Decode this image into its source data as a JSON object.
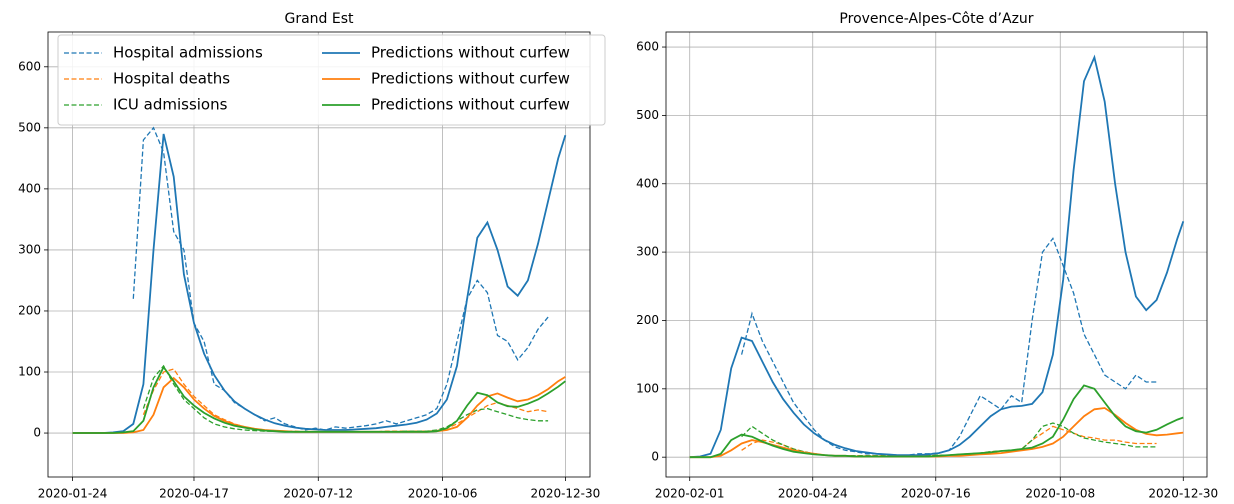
{
  "chart_data": [
    {
      "type": "line",
      "title": "Grand Est",
      "legend": "upper left",
      "legend_columns": 2,
      "grid": true,
      "x": [
        "2020-01-24",
        "2020-01-31",
        "2020-02-07",
        "2020-02-14",
        "2020-02-21",
        "2020-02-28",
        "2020-03-06",
        "2020-03-13",
        "2020-03-20",
        "2020-03-27",
        "2020-04-03",
        "2020-04-10",
        "2020-04-17",
        "2020-04-24",
        "2020-05-01",
        "2020-05-08",
        "2020-05-15",
        "2020-05-22",
        "2020-05-29",
        "2020-06-05",
        "2020-06-12",
        "2020-06-19",
        "2020-06-26",
        "2020-07-03",
        "2020-07-10",
        "2020-07-17",
        "2020-07-24",
        "2020-07-31",
        "2020-08-07",
        "2020-08-14",
        "2020-08-21",
        "2020-08-28",
        "2020-09-04",
        "2020-09-11",
        "2020-09-18",
        "2020-09-25",
        "2020-10-02",
        "2020-10-09",
        "2020-10-16",
        "2020-10-23",
        "2020-10-30",
        "2020-11-06",
        "2020-11-13",
        "2020-11-20",
        "2020-11-27",
        "2020-12-04",
        "2020-12-11",
        "2020-12-18",
        "2020-12-25",
        "2020-12-30"
      ],
      "xlim": [
        "2020-01-07",
        "2021-01-16"
      ],
      "xticks": [
        "2020-01-24",
        "2020-04-17",
        "2020-07-12",
        "2020-10-06",
        "2020-12-30"
      ],
      "ylim": [
        -72,
        657
      ],
      "yticks": [
        0,
        100,
        200,
        300,
        400,
        500,
        600
      ],
      "series": [
        {
          "name": "Hospital admissions",
          "color": "#1f77b4",
          "linestyle": "dashed",
          "values": [
            null,
            null,
            null,
            null,
            null,
            null,
            220,
            480,
            500,
            460,
            330,
            300,
            180,
            150,
            80,
            70,
            50,
            40,
            30,
            20,
            25,
            15,
            10,
            5,
            8,
            5,
            10,
            8,
            10,
            12,
            15,
            20,
            15,
            20,
            25,
            30,
            40,
            80,
            150,
            220,
            250,
            230,
            160,
            150,
            120,
            140,
            170,
            190,
            null,
            null
          ]
        },
        {
          "name": "Hospital deaths",
          "color": "#ff7f0e",
          "linestyle": "dashed",
          "values": [
            null,
            null,
            null,
            null,
            null,
            null,
            null,
            30,
            70,
            100,
            105,
            80,
            60,
            45,
            30,
            22,
            15,
            10,
            7,
            5,
            4,
            3,
            3,
            2,
            2,
            2,
            2,
            2,
            2,
            2,
            2,
            3,
            3,
            3,
            3,
            3,
            4,
            8,
            15,
            25,
            35,
            45,
            50,
            45,
            40,
            35,
            38,
            35,
            null,
            null
          ]
        },
        {
          "name": "ICU admissions",
          "color": "#2ca02c",
          "linestyle": "dashed",
          "values": [
            null,
            null,
            null,
            null,
            null,
            null,
            null,
            40,
            90,
            110,
            80,
            55,
            40,
            25,
            15,
            10,
            7,
            5,
            4,
            3,
            3,
            2,
            2,
            2,
            2,
            2,
            2,
            2,
            2,
            2,
            2,
            2,
            2,
            3,
            3,
            3,
            5,
            10,
            20,
            30,
            38,
            40,
            35,
            30,
            25,
            22,
            20,
            20,
            null,
            null
          ]
        },
        {
          "name": "Predictions without curfew",
          "color": "#1f77b4",
          "linestyle": "solid",
          "values": [
            0,
            0,
            0,
            0,
            1,
            3,
            15,
            80,
            300,
            490,
            420,
            260,
            180,
            130,
            95,
            70,
            52,
            40,
            30,
            22,
            16,
            12,
            9,
            7,
            6,
            5,
            5,
            5,
            6,
            7,
            8,
            10,
            12,
            14,
            17,
            22,
            32,
            55,
            110,
            220,
            320,
            345,
            300,
            240,
            225,
            250,
            310,
            380,
            450,
            488
          ]
        },
        {
          "name": "Predictions without curfew",
          "color": "#ff7f0e",
          "linestyle": "solid",
          "values": [
            0,
            0,
            0,
            0,
            0,
            0,
            1,
            5,
            30,
            75,
            90,
            75,
            55,
            40,
            28,
            20,
            14,
            10,
            7,
            5,
            4,
            3,
            2,
            2,
            2,
            2,
            2,
            2,
            2,
            2,
            2,
            2,
            2,
            2,
            2,
            2,
            3,
            5,
            10,
            25,
            45,
            60,
            65,
            58,
            52,
            55,
            62,
            72,
            85,
            92
          ]
        },
        {
          "name": "Predictions without curfew",
          "color": "#2ca02c",
          "linestyle": "solid",
          "values": [
            0,
            0,
            0,
            0,
            0,
            1,
            3,
            20,
            75,
            108,
            85,
            60,
            45,
            33,
            24,
            17,
            12,
            9,
            6,
            4,
            3,
            2,
            2,
            2,
            2,
            2,
            2,
            2,
            2,
            2,
            2,
            2,
            2,
            2,
            2,
            2,
            3,
            8,
            20,
            45,
            66,
            62,
            50,
            44,
            43,
            48,
            55,
            65,
            76,
            85
          ]
        }
      ]
    },
    {
      "type": "line",
      "title": "Provence-Alpes-Côte d’Azur",
      "grid": true,
      "x": [
        "2020-02-01",
        "2020-02-08",
        "2020-02-15",
        "2020-02-22",
        "2020-02-29",
        "2020-03-07",
        "2020-03-14",
        "2020-03-21",
        "2020-03-28",
        "2020-04-04",
        "2020-04-11",
        "2020-04-18",
        "2020-04-25",
        "2020-05-02",
        "2020-05-09",
        "2020-05-16",
        "2020-05-23",
        "2020-05-30",
        "2020-06-06",
        "2020-06-13",
        "2020-06-20",
        "2020-06-27",
        "2020-07-04",
        "2020-07-11",
        "2020-07-18",
        "2020-07-25",
        "2020-08-01",
        "2020-08-08",
        "2020-08-15",
        "2020-08-22",
        "2020-08-29",
        "2020-09-05",
        "2020-09-12",
        "2020-09-19",
        "2020-09-26",
        "2020-10-03",
        "2020-10-10",
        "2020-10-17",
        "2020-10-24",
        "2020-10-31",
        "2020-11-07",
        "2020-11-14",
        "2020-11-21",
        "2020-11-28",
        "2020-12-05",
        "2020-12-12",
        "2020-12-19",
        "2020-12-26",
        "2020-12-30"
      ],
      "xlim": [
        "2020-01-16",
        "2021-01-15"
      ],
      "xticks": [
        "2020-02-01",
        "2020-04-24",
        "2020-07-16",
        "2020-10-08",
        "2020-12-30"
      ],
      "ylim": [
        -29,
        622
      ],
      "yticks": [
        0,
        100,
        200,
        300,
        400,
        500,
        600
      ],
      "series": [
        {
          "color": "#1f77b4",
          "linestyle": "dashed",
          "values": [
            null,
            null,
            null,
            null,
            null,
            150,
            210,
            170,
            140,
            110,
            80,
            60,
            40,
            25,
            15,
            10,
            8,
            5,
            5,
            4,
            3,
            3,
            5,
            5,
            6,
            10,
            30,
            60,
            90,
            80,
            70,
            90,
            80,
            200,
            300,
            320,
            280,
            240,
            180,
            150,
            120,
            110,
            100,
            120,
            110,
            110,
            null,
            null,
            null
          ]
        },
        {
          "color": "#ff7f0e",
          "linestyle": "dashed",
          "values": [
            null,
            null,
            null,
            null,
            null,
            10,
            20,
            25,
            22,
            18,
            12,
            8,
            5,
            3,
            2,
            2,
            2,
            2,
            2,
            2,
            2,
            2,
            2,
            2,
            3,
            3,
            4,
            5,
            6,
            8,
            9,
            10,
            12,
            25,
            35,
            45,
            40,
            35,
            30,
            28,
            25,
            25,
            22,
            20,
            20,
            20,
            null,
            null,
            null
          ]
        },
        {
          "color": "#2ca02c",
          "linestyle": "dashed",
          "values": [
            null,
            null,
            null,
            null,
            null,
            30,
            45,
            35,
            25,
            18,
            12,
            8,
            5,
            3,
            2,
            2,
            2,
            2,
            2,
            2,
            2,
            2,
            2,
            2,
            3,
            3,
            4,
            5,
            6,
            8,
            9,
            10,
            12,
            25,
            45,
            50,
            45,
            35,
            28,
            25,
            22,
            20,
            18,
            15,
            15,
            15,
            null,
            null,
            null
          ]
        },
        {
          "color": "#1f77b4",
          "linestyle": "solid",
          "values": [
            0,
            1,
            5,
            40,
            130,
            175,
            170,
            140,
            110,
            85,
            65,
            48,
            35,
            25,
            18,
            13,
            9,
            7,
            5,
            4,
            3,
            3,
            3,
            4,
            6,
            10,
            18,
            30,
            45,
            60,
            70,
            74,
            75,
            78,
            95,
            150,
            260,
            420,
            550,
            585,
            520,
            400,
            300,
            235,
            215,
            230,
            270,
            320,
            345
          ]
        },
        {
          "color": "#ff7f0e",
          "linestyle": "solid",
          "values": [
            0,
            0,
            0,
            2,
            10,
            20,
            25,
            22,
            18,
            14,
            10,
            7,
            5,
            3,
            2,
            2,
            1,
            1,
            1,
            1,
            1,
            1,
            1,
            1,
            1,
            2,
            2,
            3,
            4,
            5,
            6,
            8,
            10,
            12,
            15,
            20,
            30,
            45,
            60,
            70,
            72,
            62,
            50,
            40,
            34,
            32,
            33,
            35,
            36
          ]
        },
        {
          "color": "#2ca02c",
          "linestyle": "solid",
          "values": [
            0,
            0,
            0,
            5,
            25,
            33,
            30,
            23,
            17,
            12,
            8,
            6,
            4,
            3,
            2,
            2,
            1,
            1,
            1,
            1,
            1,
            1,
            1,
            1,
            2,
            3,
            4,
            5,
            6,
            7,
            9,
            10,
            12,
            14,
            20,
            30,
            55,
            85,
            105,
            100,
            80,
            60,
            45,
            38,
            36,
            40,
            48,
            55,
            58
          ]
        }
      ]
    }
  ]
}
